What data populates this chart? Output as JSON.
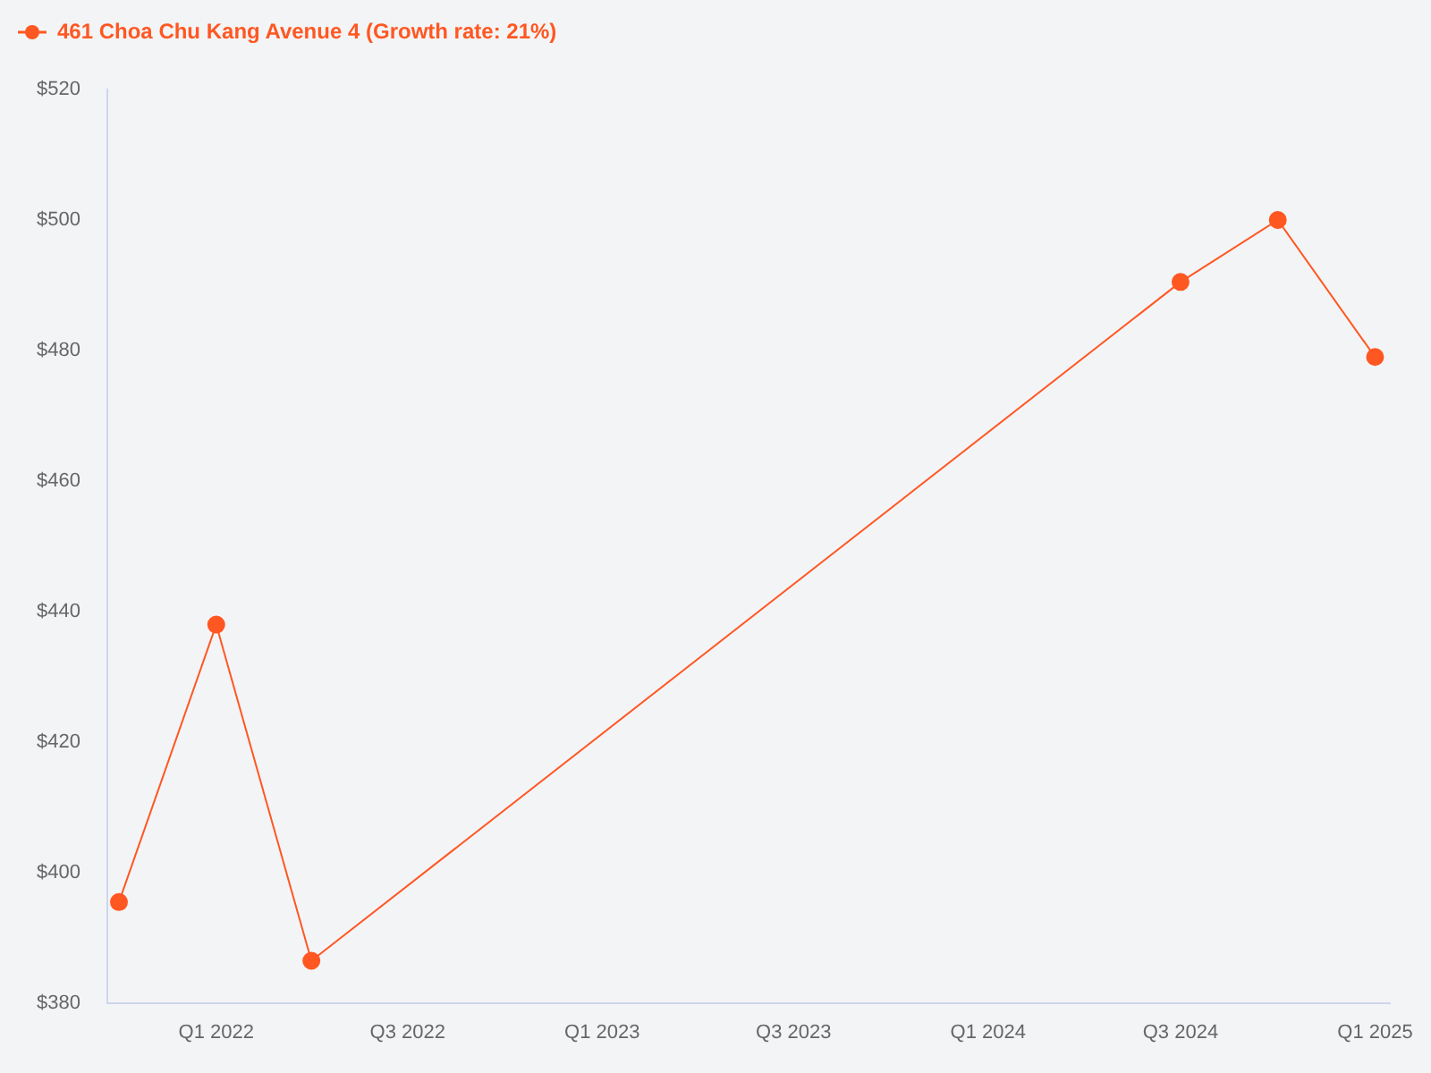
{
  "chart_data": {
    "type": "line",
    "x": [
      "2021-10",
      "2022-01",
      "2022-04",
      "2024-07",
      "2024-10",
      "2025-01"
    ],
    "series": [
      {
        "name": "461 Choa Chu Kang Avenue 4 (Growth rate: 21%)",
        "color": "#ff5722",
        "values": [
          395.5,
          438,
          386.5,
          490.5,
          500,
          479
        ]
      }
    ],
    "xlim": [
      "2021-09-20",
      "2025-01-15"
    ],
    "xticks": [
      {
        "value": "2022-01",
        "label": "Q1 2022"
      },
      {
        "value": "2022-07",
        "label": "Q3 2022"
      },
      {
        "value": "2023-01",
        "label": "Q1 2023"
      },
      {
        "value": "2023-07",
        "label": "Q3 2023"
      },
      {
        "value": "2024-01",
        "label": "Q1 2024"
      },
      {
        "value": "2024-07",
        "label": "Q3 2024"
      },
      {
        "value": "2025-01",
        "label": "Q1 2025"
      }
    ],
    "ylim": [
      380,
      520
    ],
    "yticks": [
      {
        "value": 380,
        "label": "$380"
      },
      {
        "value": 400,
        "label": "$400"
      },
      {
        "value": 420,
        "label": "$420"
      },
      {
        "value": 440,
        "label": "$440"
      },
      {
        "value": 460,
        "label": "$460"
      },
      {
        "value": 480,
        "label": "$480"
      },
      {
        "value": 500,
        "label": "$500"
      },
      {
        "value": 520,
        "label": "$520"
      }
    ],
    "grid": false,
    "legend": "top left",
    "marker": "circle",
    "line_style": "solid"
  }
}
